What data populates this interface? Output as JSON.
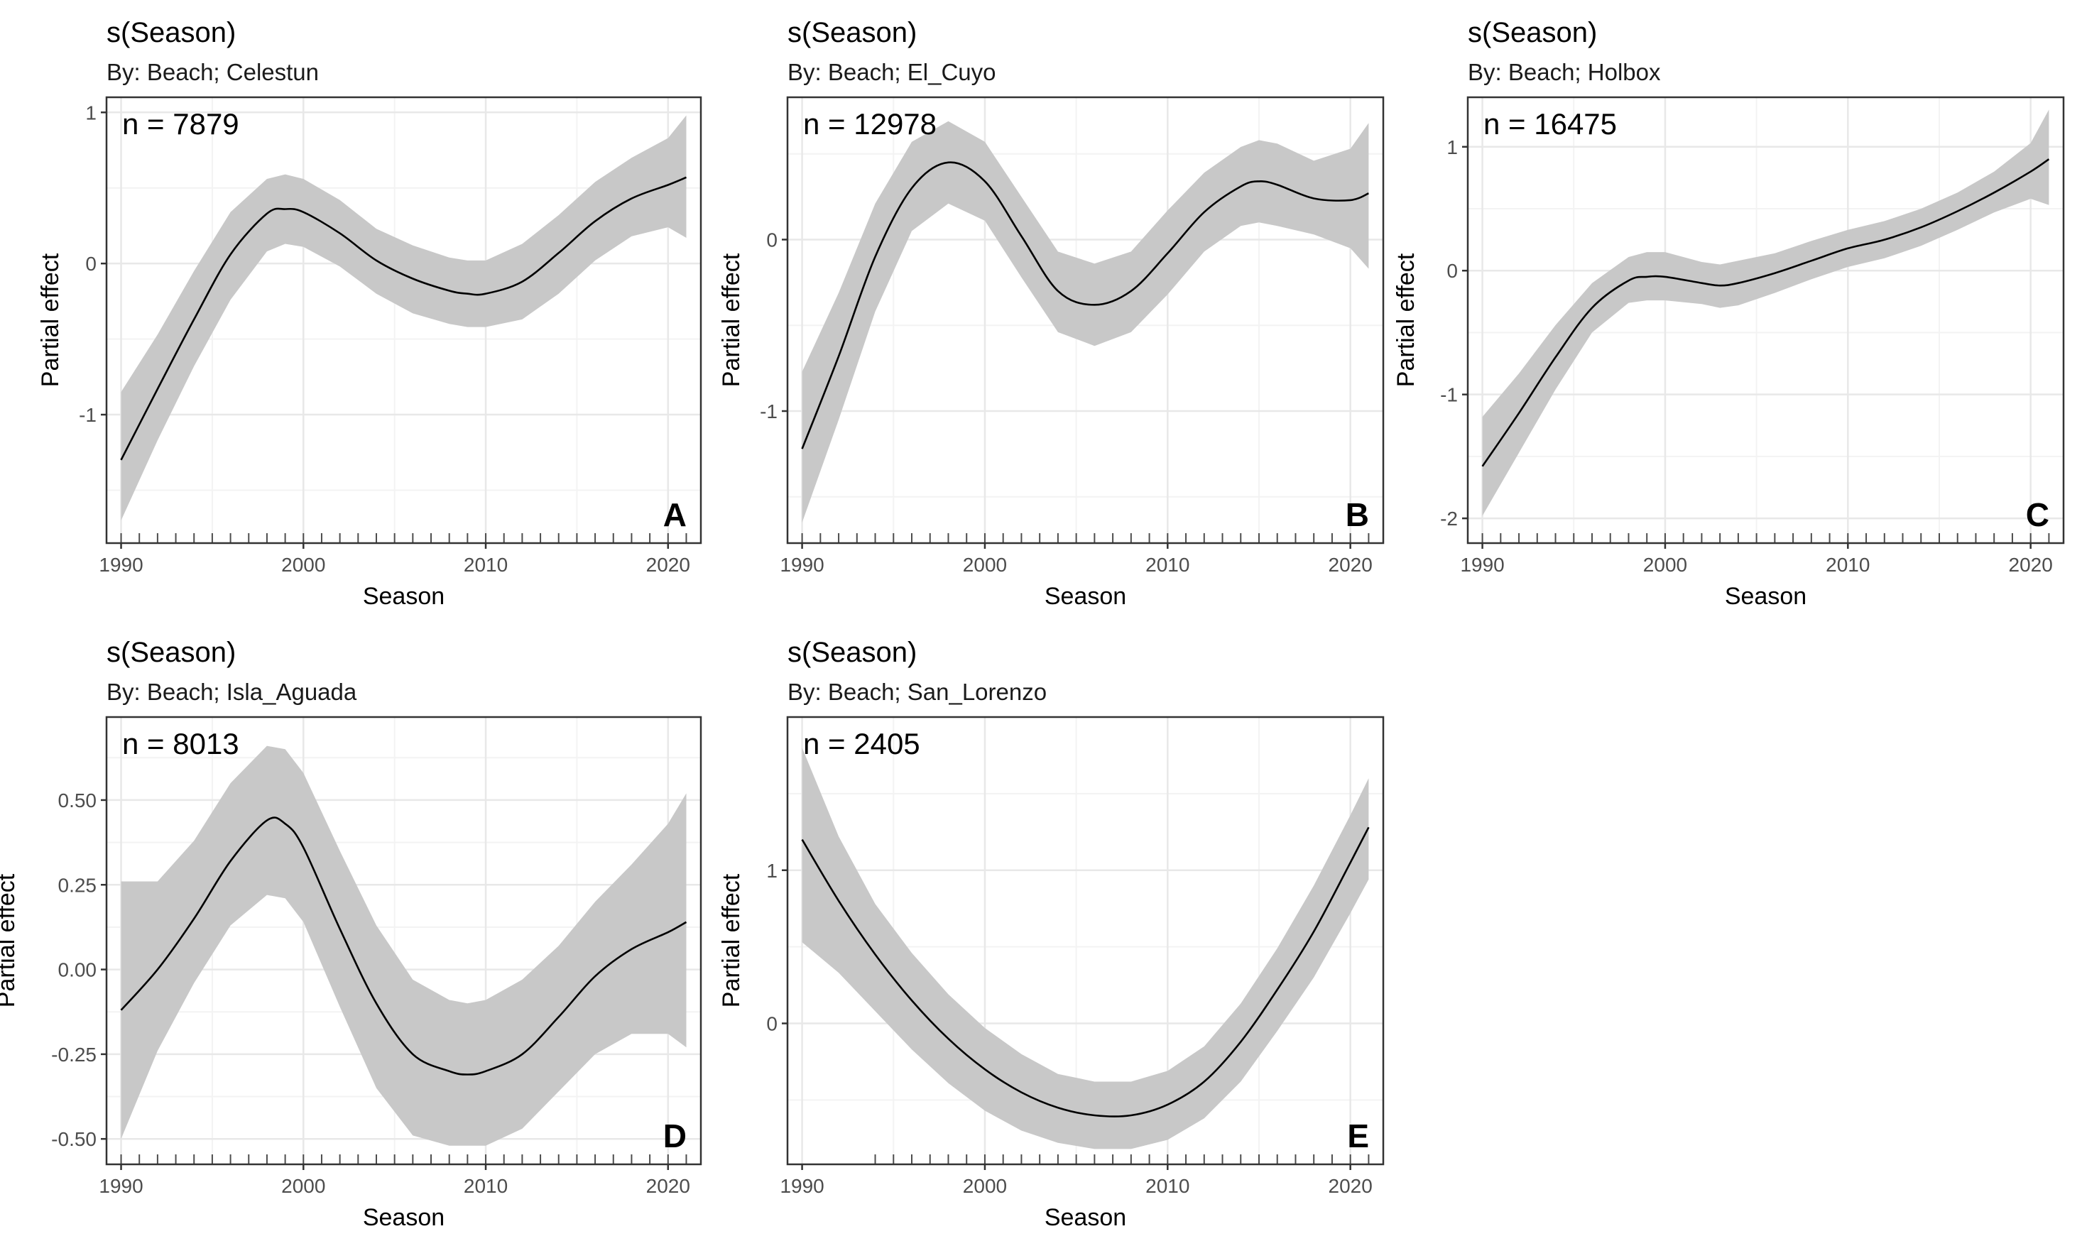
{
  "colors": {
    "band": "#c8c8c8",
    "line": "#000000",
    "grid_major": "#e8e8e8",
    "grid_minor": "#f3f3f3",
    "border": "#333333",
    "tick_text": "#4d4d4d",
    "rug": "#4d4d4d"
  },
  "chart_data": [
    {
      "type": "line",
      "panel": "A",
      "title": "s(Season)",
      "subtitle": "By: Beach; Celestun",
      "annotation": "n = 7879",
      "xlabel": "Season",
      "ylabel": "Partial effect",
      "xlim": [
        1989.2,
        2021.8
      ],
      "ylim": [
        -1.85,
        1.1
      ],
      "xticks": [
        1990,
        2000,
        2010,
        2020
      ],
      "yticks": [
        -1,
        0,
        1
      ],
      "ytick_labels": [
        "-1",
        "0",
        "1"
      ],
      "rug": [
        1990,
        1991,
        1992,
        1993,
        1994,
        1995,
        1996,
        1997,
        1998,
        1999,
        2000,
        2001,
        2002,
        2003,
        2004,
        2005,
        2006,
        2007,
        2008,
        2009,
        2010,
        2011,
        2012,
        2013,
        2014,
        2015,
        2016,
        2017,
        2018,
        2019,
        2020,
        2021
      ],
      "x": [
        1990,
        1992,
        1994,
        1996,
        1998,
        1999,
        2000,
        2002,
        2004,
        2006,
        2008,
        2009,
        2010,
        2012,
        2014,
        2016,
        2018,
        2020,
        2021
      ],
      "y": [
        -1.3,
        -0.83,
        -0.37,
        0.06,
        0.33,
        0.36,
        0.34,
        0.2,
        0.02,
        -0.1,
        -0.18,
        -0.2,
        -0.2,
        -0.12,
        0.07,
        0.28,
        0.43,
        0.52,
        0.57
      ],
      "lower": [
        -1.7,
        -1.17,
        -0.68,
        -0.24,
        0.08,
        0.13,
        0.11,
        -0.02,
        -0.2,
        -0.33,
        -0.4,
        -0.42,
        -0.42,
        -0.37,
        -0.2,
        0.02,
        0.18,
        0.24,
        0.17
      ],
      "upper": [
        -0.85,
        -0.47,
        -0.05,
        0.34,
        0.56,
        0.59,
        0.56,
        0.42,
        0.23,
        0.12,
        0.04,
        0.02,
        0.02,
        0.13,
        0.32,
        0.54,
        0.7,
        0.83,
        0.98
      ]
    },
    {
      "type": "line",
      "panel": "B",
      "title": "s(Season)",
      "subtitle": "By: Beach; El_Cuyo",
      "annotation": "n = 12978",
      "xlabel": "Season",
      "ylabel": "Partial effect",
      "xlim": [
        1989.2,
        2021.8
      ],
      "ylim": [
        -1.77,
        0.83
      ],
      "xticks": [
        1990,
        2000,
        2010,
        2020
      ],
      "yticks": [
        -1,
        0
      ],
      "ytick_labels": [
        "-1",
        "0"
      ],
      "rug": [
        1990,
        1991,
        1992,
        1993,
        1994,
        1995,
        1996,
        1997,
        1998,
        1999,
        2000,
        2001,
        2002,
        2003,
        2004,
        2005,
        2006,
        2007,
        2008,
        2009,
        2010,
        2011,
        2012,
        2013,
        2014,
        2015,
        2016,
        2017,
        2018,
        2019,
        2020,
        2021
      ],
      "x": [
        1990,
        1992,
        1994,
        1996,
        1998,
        2000,
        2002,
        2004,
        2006,
        2008,
        2010,
        2012,
        2014,
        2015,
        2016,
        2018,
        2020,
        2021
      ],
      "y": [
        -1.22,
        -0.68,
        -0.1,
        0.3,
        0.45,
        0.34,
        0.02,
        -0.3,
        -0.38,
        -0.3,
        -0.08,
        0.16,
        0.31,
        0.34,
        0.32,
        0.24,
        0.23,
        0.27
      ],
      "lower": [
        -1.65,
        -1.05,
        -0.42,
        0.05,
        0.21,
        0.11,
        -0.22,
        -0.54,
        -0.62,
        -0.54,
        -0.32,
        -0.07,
        0.08,
        0.1,
        0.08,
        0.03,
        -0.05,
        -0.17
      ],
      "upper": [
        -0.77,
        -0.31,
        0.21,
        0.57,
        0.69,
        0.57,
        0.25,
        -0.07,
        -0.14,
        -0.07,
        0.17,
        0.39,
        0.54,
        0.58,
        0.56,
        0.46,
        0.53,
        0.68
      ]
    },
    {
      "type": "line",
      "panel": "C",
      "title": "s(Season)",
      "subtitle": "By: Beach; Holbox",
      "annotation": "n = 16475",
      "xlabel": "Season",
      "ylabel": "Partial effect",
      "xlim": [
        1989.2,
        2021.8
      ],
      "ylim": [
        -2.2,
        1.4
      ],
      "xticks": [
        1990,
        2000,
        2010,
        2020
      ],
      "yticks": [
        -2,
        -1,
        0,
        1
      ],
      "ytick_labels": [
        "-2",
        "-1",
        "0",
        "1"
      ],
      "rug": [
        1990,
        1991,
        1992,
        1993,
        1994,
        1995,
        1996,
        1997,
        1998,
        1999,
        2000,
        2001,
        2002,
        2003,
        2004,
        2005,
        2006,
        2007,
        2008,
        2009,
        2010,
        2011,
        2012,
        2013,
        2014,
        2015,
        2016,
        2017,
        2018,
        2019,
        2020,
        2021
      ],
      "x": [
        1990,
        1992,
        1994,
        1996,
        1998,
        1999,
        2000,
        2002,
        2003,
        2004,
        2006,
        2008,
        2010,
        2012,
        2014,
        2016,
        2018,
        2020,
        2021
      ],
      "y": [
        -1.58,
        -1.15,
        -0.7,
        -0.3,
        -0.08,
        -0.05,
        -0.05,
        -0.1,
        -0.12,
        -0.1,
        -0.02,
        0.08,
        0.18,
        0.25,
        0.35,
        0.48,
        0.63,
        0.8,
        0.9
      ],
      "lower": [
        -1.98,
        -1.47,
        -0.96,
        -0.5,
        -0.26,
        -0.24,
        -0.24,
        -0.27,
        -0.3,
        -0.28,
        -0.18,
        -0.07,
        0.03,
        0.1,
        0.2,
        0.33,
        0.47,
        0.58,
        0.53
      ],
      "upper": [
        -1.18,
        -0.83,
        -0.44,
        -0.1,
        0.11,
        0.15,
        0.15,
        0.07,
        0.05,
        0.08,
        0.14,
        0.24,
        0.33,
        0.4,
        0.5,
        0.63,
        0.8,
        1.03,
        1.3
      ]
    },
    {
      "type": "line",
      "panel": "D",
      "title": "s(Season)",
      "subtitle": "By: Beach; Isla_Aguada",
      "annotation": "n = 8013",
      "xlabel": "Season",
      "ylabel": "Partial effect",
      "xlim": [
        1989.2,
        2021.8
      ],
      "ylim": [
        -0.575,
        0.745
      ],
      "xticks": [
        1990,
        2000,
        2010,
        2020
      ],
      "yticks": [
        -0.5,
        -0.25,
        0,
        0.25,
        0.5
      ],
      "ytick_labels": [
        "-0.50",
        "-0.25",
        "0.00",
        "0.25",
        "0.50"
      ],
      "rug": [
        1990,
        1991,
        1992,
        1993,
        1994,
        1995,
        1996,
        1997,
        1998,
        1999,
        2000,
        2001,
        2002,
        2003,
        2004,
        2005,
        2006,
        2007,
        2008,
        2009,
        2010,
        2011,
        2012,
        2013,
        2014,
        2015,
        2016,
        2017,
        2018,
        2019,
        2020,
        2021
      ],
      "x": [
        1990,
        1992,
        1994,
        1996,
        1998,
        1999,
        2000,
        2002,
        2004,
        2006,
        2008,
        2009,
        2010,
        2012,
        2014,
        2016,
        2018,
        2020,
        2021
      ],
      "y": [
        -0.12,
        0.0,
        0.15,
        0.32,
        0.44,
        0.43,
        0.36,
        0.12,
        -0.1,
        -0.25,
        -0.3,
        -0.31,
        -0.3,
        -0.25,
        -0.14,
        -0.02,
        0.06,
        0.11,
        0.14
      ],
      "lower": [
        -0.5,
        -0.24,
        -0.04,
        0.13,
        0.22,
        0.21,
        0.14,
        -0.11,
        -0.35,
        -0.49,
        -0.52,
        -0.52,
        -0.52,
        -0.47,
        -0.36,
        -0.25,
        -0.19,
        -0.19,
        -0.23
      ],
      "upper": [
        0.26,
        0.26,
        0.38,
        0.55,
        0.66,
        0.65,
        0.58,
        0.35,
        0.13,
        -0.03,
        -0.09,
        -0.1,
        -0.09,
        -0.03,
        0.07,
        0.2,
        0.31,
        0.43,
        0.52
      ]
    },
    {
      "type": "line",
      "panel": "E",
      "title": "s(Season)",
      "subtitle": "By: Beach; San_Lorenzo",
      "annotation": "n = 2405",
      "xlabel": "Season",
      "ylabel": "Partial effect",
      "xlim": [
        1989.2,
        2021.8
      ],
      "ylim": [
        -0.92,
        2.0
      ],
      "xticks": [
        1990,
        2000,
        2010,
        2020
      ],
      "yticks": [
        0,
        1
      ],
      "ytick_labels": [
        "0",
        "1"
      ],
      "rug": [
        1994,
        1995,
        1996,
        1997,
        1998,
        1999,
        2000,
        2001,
        2002,
        2003,
        2004,
        2005,
        2006,
        2007,
        2008,
        2009,
        2010,
        2011,
        2012,
        2013,
        2014,
        2015,
        2016,
        2017,
        2018,
        2019,
        2020,
        2021
      ],
      "x": [
        1990,
        1992,
        1994,
        1996,
        1998,
        2000,
        2002,
        2004,
        2006,
        2008,
        2010,
        2012,
        2014,
        2016,
        2018,
        2020,
        2021
      ],
      "y": [
        1.2,
        0.8,
        0.45,
        0.15,
        -0.1,
        -0.3,
        -0.45,
        -0.55,
        -0.6,
        -0.6,
        -0.53,
        -0.38,
        -0.12,
        0.22,
        0.6,
        1.05,
        1.28
      ],
      "lower": [
        0.53,
        0.33,
        0.08,
        -0.17,
        -0.39,
        -0.57,
        -0.7,
        -0.78,
        -0.82,
        -0.82,
        -0.76,
        -0.62,
        -0.38,
        -0.05,
        0.3,
        0.72,
        0.94
      ],
      "upper": [
        1.8,
        1.22,
        0.78,
        0.46,
        0.19,
        -0.03,
        -0.2,
        -0.33,
        -0.38,
        -0.38,
        -0.31,
        -0.15,
        0.13,
        0.49,
        0.9,
        1.36,
        1.6
      ]
    }
  ]
}
